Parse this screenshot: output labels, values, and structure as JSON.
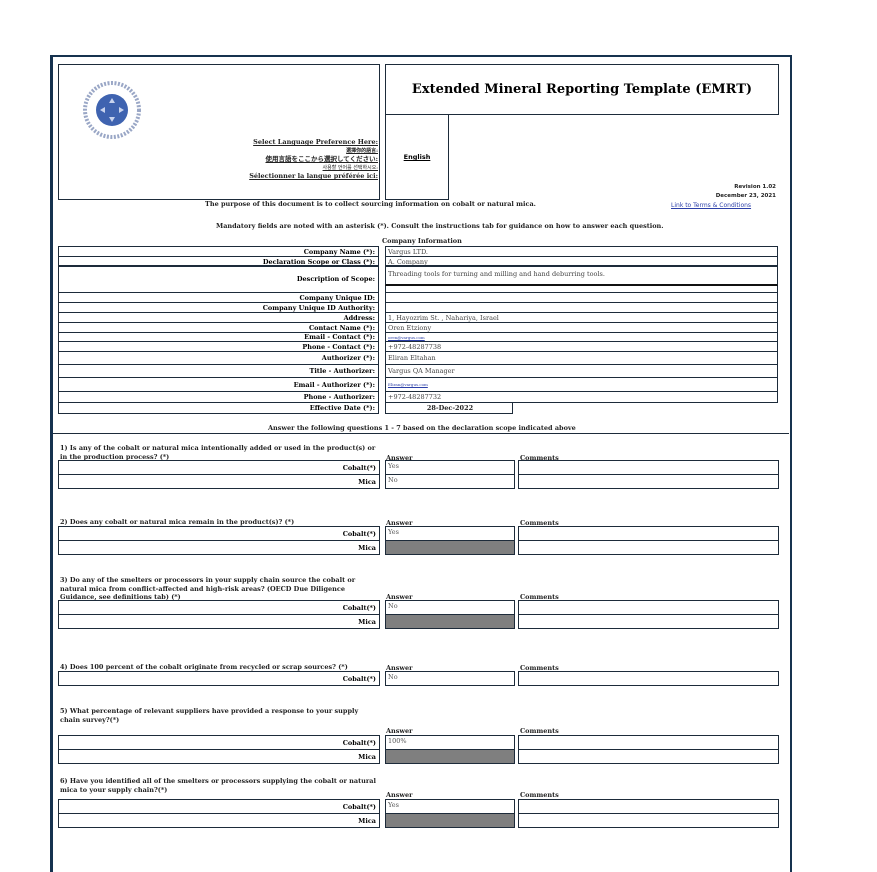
{
  "header": {
    "title": "Extended Mineral Reporting Template (EMRT)",
    "logo_text": "RESPONSIBLE MINERALS INITIATIVE",
    "language_prompts": [
      "Select Language Preference Here:",
      "選擇你的語言:",
      "使用言語をここから選択してください:",
      "사용할 언어를 선택하시오:",
      "Sélectionner la langue préférée ici:"
    ],
    "language_value": "English",
    "revision": "Revision 1.02",
    "revision_date": "December 23, 2021",
    "terms_link": "Link to Terms & Conditions",
    "purpose": "The purpose of this document is to collect sourcing information on cobalt or natural mica.",
    "mandatory": "Mandatory fields are noted with an asterisk (*).  Consult the instructions tab for guidance on how to answer each question."
  },
  "company": {
    "heading": "Company Information",
    "fields": [
      {
        "label": "Company Name (*):",
        "value": "Vargus LTD."
      },
      {
        "label": "Declaration Scope or Class (*):",
        "value": "A. Company"
      },
      {
        "label": "Description of Scope:",
        "value": "Threading tools for turning and milling and hand deburring tools."
      },
      {
        "label": "Company Unique ID:",
        "value": ""
      },
      {
        "label": "Company Unique ID Authority:",
        "value": ""
      },
      {
        "label": "Address:",
        "value": "1, Hayozrim St. , Nahariya, Israel"
      },
      {
        "label": "Contact Name (*):",
        "value": "Oren Etziony"
      },
      {
        "label": "Email - Contact (*):",
        "value": "oren@vargus.com"
      },
      {
        "label": "Phone - Contact (*):",
        "value": "+972-48287738"
      },
      {
        "label": "Authorizer (*):",
        "value": "Eliran Eltahan"
      },
      {
        "label": "Title - Authorizer:",
        "value": "Vargus QA Manager"
      },
      {
        "label": "Email - Authorizer (*):",
        "value": "Eliran@vargus.com"
      },
      {
        "label": "Phone - Authorizer:",
        "value": "+972-48287732"
      },
      {
        "label": "Effective Date (*):",
        "value": "28-Dec-2022"
      }
    ]
  },
  "questions_intro": "Answer the following questions 1 - 7 based on the declaration scope indicated above",
  "answer_header": "Answer",
  "comments_header": "Comments",
  "questions": [
    {
      "text": "1) Is any of the cobalt or natural mica intentionally added or used in the product(s) or in the production process? (*)",
      "rows": [
        {
          "label": "Cobalt(*)",
          "answer": "Yes",
          "disabled": false
        },
        {
          "label": "Mica",
          "answer": "No",
          "disabled": false
        }
      ]
    },
    {
      "text": "2) Does any cobalt or natural mica remain in the product(s)? (*)",
      "rows": [
        {
          "label": "Cobalt(*)",
          "answer": "Yes",
          "disabled": false
        },
        {
          "label": "Mica",
          "answer": "",
          "disabled": true
        }
      ]
    },
    {
      "text": "3) Do any of the smelters or processors in your supply chain source the cobalt or natural mica from conflict-affected and high-risk areas? (OECD Due Diligence Guidance, see definitions tab) (*)",
      "rows": [
        {
          "label": "Cobalt(*)",
          "answer": "No",
          "disabled": false
        },
        {
          "label": "Mica",
          "answer": "",
          "disabled": true
        }
      ]
    },
    {
      "text": "4) Does 100 percent of the cobalt originate from recycled or scrap sources? (*)",
      "rows": [
        {
          "label": "Cobalt(*)",
          "answer": "No",
          "disabled": false
        }
      ]
    },
    {
      "text": "5) What percentage of relevant suppliers have provided a response to your supply chain survey?(*)",
      "rows": [
        {
          "label": "Cobalt(*)",
          "answer": "100%",
          "disabled": false
        },
        {
          "label": "Mica",
          "answer": "",
          "disabled": true
        }
      ]
    },
    {
      "text": "6) Have you identified all of the smelters or processors supplying the cobalt or natural mica to your supply chain?(*)",
      "rows": [
        {
          "label": "Cobalt(*)",
          "answer": "Yes",
          "disabled": false
        },
        {
          "label": "Mica",
          "answer": "",
          "disabled": true
        }
      ]
    }
  ],
  "colors": {
    "frame": "#16324f",
    "disabled_cell": "#7f7f7f",
    "logo": "#3f63b0",
    "link": "#2b3fa8"
  }
}
